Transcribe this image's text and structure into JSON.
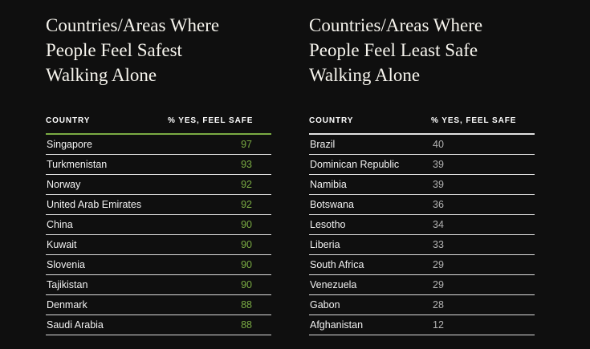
{
  "page": {
    "background": "#0f0f0f"
  },
  "colors": {
    "accent_green": "#7aab43",
    "muted_value_gray": "#b3b3b3",
    "row_divider": "#dcdcdc",
    "title_text": "#f6f4ed"
  },
  "chart_data": [
    {
      "type": "table",
      "title": "Countries/Areas Where People Feel Safest Walking Alone",
      "title_lines": [
        "Countries/Areas Where",
        "People Feel Safest",
        "Walking Alone"
      ],
      "columns": [
        "COUNTRY",
        "% YES, FEEL SAFE"
      ],
      "value_color": "#7aab43",
      "header_rule_color": "#7aab43",
      "rows": [
        [
          "Singapore",
          97
        ],
        [
          "Turkmenistan",
          93
        ],
        [
          "Norway",
          92
        ],
        [
          "United Arab Emirates",
          92
        ],
        [
          "China",
          90
        ],
        [
          "Kuwait",
          90
        ],
        [
          "Slovenia",
          90
        ],
        [
          "Tajikistan",
          90
        ],
        [
          "Denmark",
          88
        ],
        [
          "Saudi Arabia",
          88
        ]
      ]
    },
    {
      "type": "table",
      "title": "Countries/Areas Where People Feel Least Safe Walking Alone",
      "title_lines": [
        "Countries/Areas Where",
        "People Feel Least Safe",
        "Walking Alone"
      ],
      "columns": [
        "COUNTRY",
        "% YES, FEEL SAFE"
      ],
      "value_color": "#b3b3b3",
      "header_rule_color": "#e0e0e0",
      "rows": [
        [
          "Brazil",
          40
        ],
        [
          "Dominican Republic",
          39
        ],
        [
          "Namibia",
          39
        ],
        [
          "Botswana",
          36
        ],
        [
          "Lesotho",
          34
        ],
        [
          "Liberia",
          33
        ],
        [
          "South Africa",
          29
        ],
        [
          "Venezuela",
          29
        ],
        [
          "Gabon",
          28
        ],
        [
          "Afghanistan",
          12
        ]
      ]
    }
  ]
}
